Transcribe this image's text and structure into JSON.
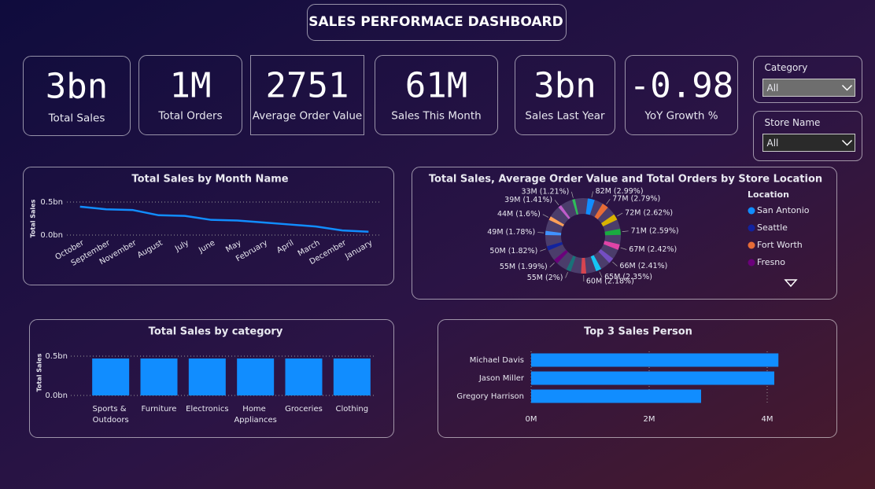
{
  "header": {
    "title": "SALES PERFORMACE DASHBOARD"
  },
  "cards": [
    {
      "value": "3bn",
      "label": "Total Sales"
    },
    {
      "value": "1M",
      "label": "Total Orders"
    },
    {
      "value": "2751",
      "label": "Average Order Value"
    },
    {
      "value": "61M",
      "label": "Sales This Month"
    },
    {
      "value": "3bn",
      "label": "Sales Last Year"
    },
    {
      "value": "-0.98",
      "label": "YoY Growth %"
    }
  ],
  "slicers": [
    {
      "label": "Category",
      "value": "All"
    },
    {
      "label": "Store Name",
      "value": "All"
    }
  ],
  "chart_data": [
    {
      "type": "line",
      "title": "Total Sales by Month Name",
      "y_label": "Total Sales",
      "color": "#118dff",
      "categories": [
        "October",
        "September",
        "November",
        "August",
        "July",
        "June",
        "May",
        "February",
        "April",
        "March",
        "December",
        "January"
      ],
      "values": [
        0.43,
        0.39,
        0.38,
        0.3,
        0.29,
        0.23,
        0.22,
        0.19,
        0.16,
        0.13,
        0.07,
        0.05
      ],
      "ylim": [
        0,
        0.5
      ],
      "yticks": [
        {
          "value": 0,
          "label": "0.0bn"
        },
        {
          "value": 0.5,
          "label": "0.5bn"
        }
      ],
      "grid": true
    },
    {
      "type": "donut",
      "title": "Total Sales, Average Order Value and Total Orders by Store Location",
      "values": [
        82,
        77,
        72,
        71,
        67,
        66,
        65,
        60,
        55,
        55,
        50,
        49,
        44,
        39,
        33
      ],
      "shares": [
        2.99,
        2.79,
        2.62,
        2.59,
        2.42,
        2.41,
        2.35,
        2.18,
        2,
        1.99,
        1.82,
        1.78,
        1.6,
        1.41,
        1.21
      ],
      "value_labels": [
        "82M (2.99%)",
        "77M (2.79%)",
        "72M (2.62%)",
        "71M (2.59%)",
        "67M (2.42%)",
        "66M (2.41%)",
        "65M (2.35%)",
        "60M (2.18%)",
        "55M (2%)",
        "55M (1.99%)",
        "50M (1.82%)",
        "49M (1.78%)",
        "44M (1.6%)",
        "39M (1.41%)",
        "33M (1.21%)"
      ],
      "colors": [
        "#118dff",
        "#e66c37",
        "#d9b300",
        "#1aab40",
        "#e044a7",
        "#744ec2",
        "#15c6f4",
        "#d64550",
        "#197278",
        "#6b007b",
        "#12239e",
        "#4092ff",
        "#ffa058",
        "#be5dc9",
        "#2ebd59"
      ],
      "legend": {
        "title": "Location",
        "items": [
          {
            "name": "San Antonio",
            "color": "#118dff"
          },
          {
            "name": "Seattle",
            "color": "#12239e"
          },
          {
            "name": "Fort Worth",
            "color": "#e66c37"
          },
          {
            "name": "Fresno",
            "color": "#6b007b"
          }
        ]
      }
    },
    {
      "type": "bar",
      "title": "Total Sales by category",
      "y_label": "Total Sales",
      "color": "#118dff",
      "categories": [
        "Sports & Outdoors",
        "Furniture",
        "Electronics",
        "Home Appliances",
        "Groceries",
        "Clothing"
      ],
      "values": [
        0.47,
        0.47,
        0.47,
        0.47,
        0.47,
        0.47
      ],
      "ylim": [
        0,
        0.5
      ],
      "yticks": [
        {
          "value": 0,
          "label": "0.0bn"
        },
        {
          "value": 0.5,
          "label": "0.5bn"
        }
      ],
      "grid": true
    },
    {
      "type": "hbar",
      "title": "Top 3 Sales Person",
      "color": "#118dff",
      "categories": [
        "Michael Davis",
        "Jason Miller",
        "Gregory Harrison"
      ],
      "values": [
        4.19,
        4.12,
        2.88
      ],
      "xlim": [
        0,
        4.5
      ],
      "xticks": [
        {
          "value": 0,
          "label": "0M"
        },
        {
          "value": 2,
          "label": "2M"
        },
        {
          "value": 4,
          "label": "4M"
        }
      ],
      "grid": true
    }
  ]
}
